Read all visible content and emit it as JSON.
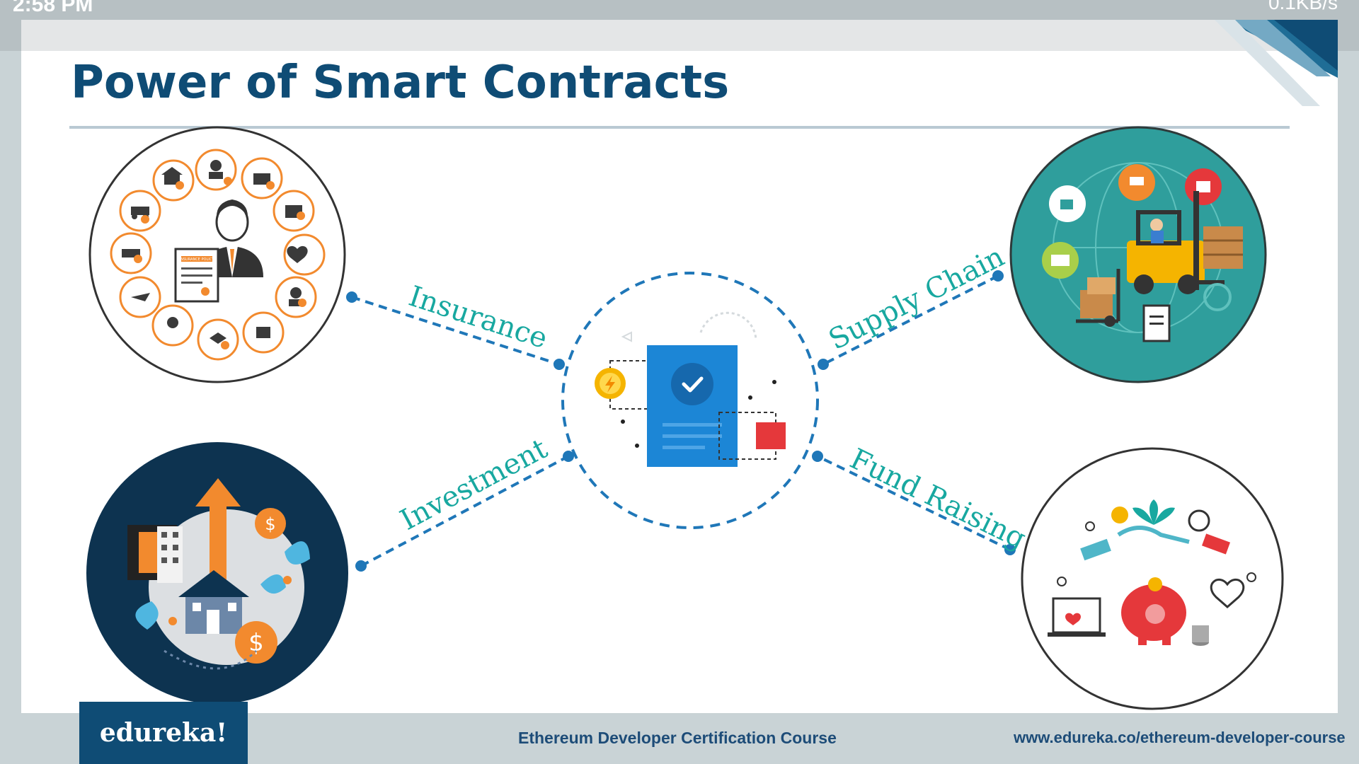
{
  "status_bar": {
    "time": "2:58 PM",
    "right_text": "0.1KB/s"
  },
  "slide": {
    "title": "Power of Smart Contracts",
    "labels": {
      "insurance": "Insurance",
      "supply_chain": "Supply Chain",
      "investment": "Investment",
      "fund_raising": "Fund Raising"
    },
    "mini_texts": {
      "policy": "INSURANCE POLICY"
    }
  },
  "footer": {
    "logo": "edureka!",
    "course": "Ethereum Developer Certification Course",
    "url": "www.edureka.co/ethereum-developer-course"
  },
  "colors": {
    "title": "#0f4c75",
    "accent_teal": "#18a8a0",
    "connector": "#1f77b8",
    "orange": "#f28a2e",
    "navy": "#0d3350"
  }
}
